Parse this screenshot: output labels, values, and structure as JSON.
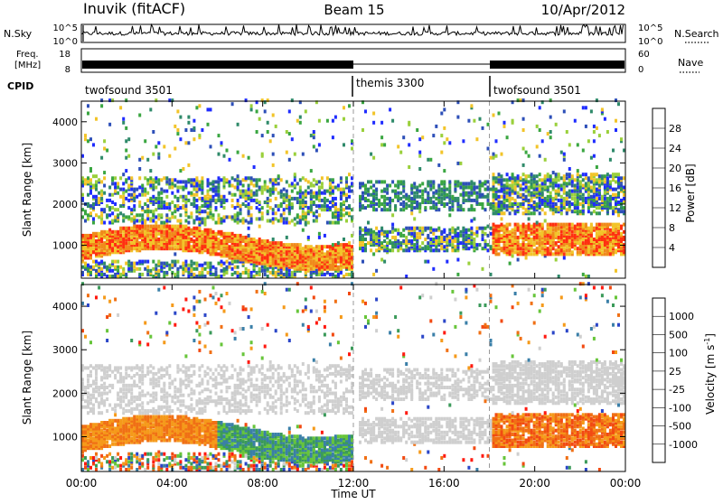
{
  "header": {
    "station": "Inuvik (fitACF)",
    "beam": "Beam 15",
    "date": "10/Apr/2012"
  },
  "top_panels": {
    "nsky_label": "N.Sky",
    "nsky_ticks": [
      "10^5",
      "10^0"
    ],
    "nsearch_label": "N.Search",
    "nsearch_ticks": [
      "10^5",
      "10^0"
    ],
    "freq_label_line1": "Freq.",
    "freq_label_line2": "[MHz]",
    "freq_ticks": [
      "18",
      "8"
    ],
    "nave_label": "Nave",
    "nave_ticks": [
      "60",
      "0"
    ],
    "cpid_label": "CPID",
    "cpid_segments": [
      {
        "label": "twofsound 3501",
        "start_h": 0,
        "end_h": 12
      },
      {
        "label": "themis 3300",
        "start_h": 12,
        "end_h": 18
      },
      {
        "label": "twofsound 3501",
        "start_h": 18,
        "end_h": 24
      }
    ]
  },
  "x_axis": {
    "label": "Time UT",
    "ticks": [
      "00:00",
      "04:00",
      "08:00",
      "12:00",
      "16:00",
      "20:00",
      "00:00"
    ],
    "range_h": [
      0,
      24
    ]
  },
  "chart_data": [
    {
      "type": "heatmap",
      "name": "power",
      "ylabel": "Slant Range [km]",
      "yticks": [
        "1000",
        "2000",
        "3000",
        "4000"
      ],
      "ylim": [
        200,
        4500
      ],
      "colorbar_label": "Power [dB]",
      "colorbar_ticks": [
        "4",
        "8",
        "12",
        "16",
        "20",
        "24",
        "28"
      ],
      "colorbar_colors": [
        "#1f2cff",
        "#2d4fb8",
        "#2f8a6a",
        "#3aa641",
        "#9ad03b",
        "#f2c429",
        "#f08a1a",
        "#ff3010"
      ]
    },
    {
      "type": "heatmap",
      "name": "velocity",
      "ylabel": "Slant Range [km]",
      "yticks": [
        "1000",
        "2000",
        "3000",
        "4000"
      ],
      "ylim": [
        200,
        4500
      ],
      "colorbar_label": "Velocity [m s",
      "colorbar_label_sup": "-1",
      "colorbar_ticks": [
        "1000",
        "500",
        "100",
        "25",
        "-25",
        "-100",
        "-500",
        "-1000"
      ],
      "colorbar_colors": [
        "#2b46c8",
        "#3a7fa8",
        "#3b9a5a",
        "#67c53a",
        "#cfcfcf",
        "#f59a1a",
        "#f07015",
        "#f24a12",
        "#ff1a10"
      ]
    }
  ]
}
